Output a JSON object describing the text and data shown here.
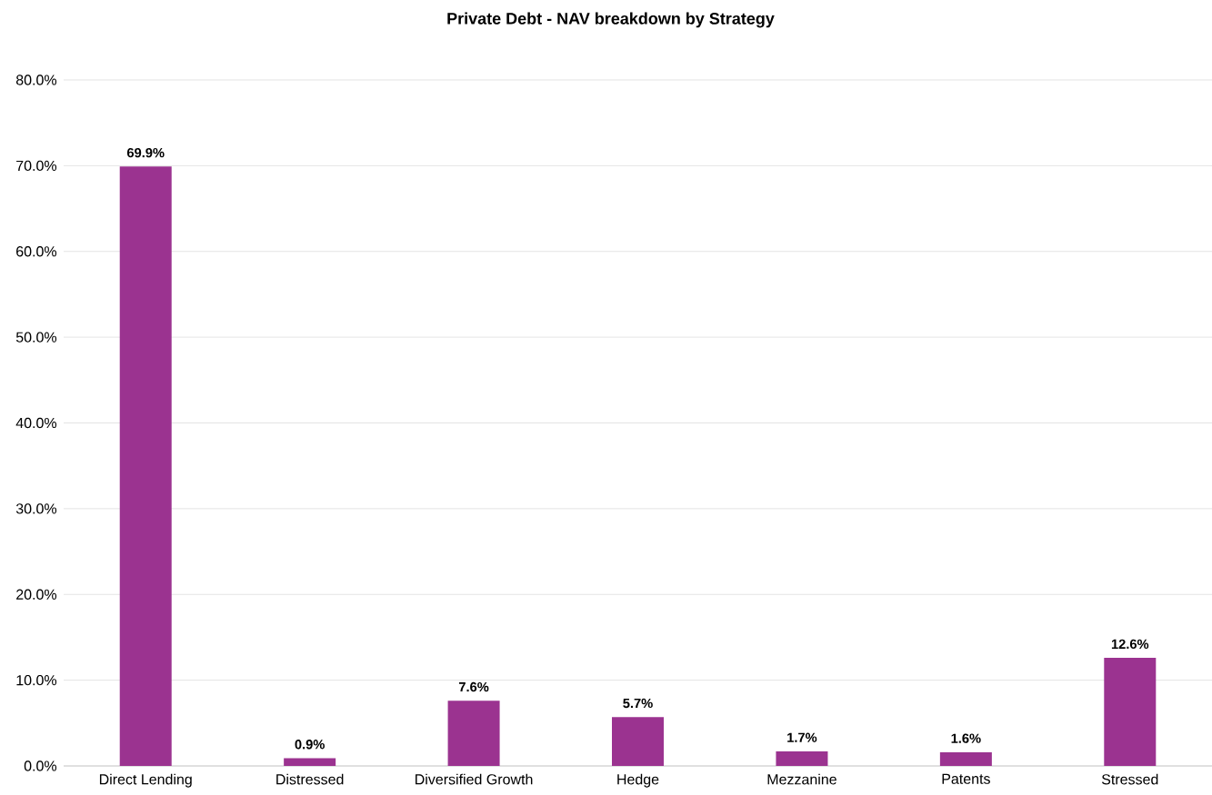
{
  "chart_data": {
    "type": "bar",
    "title": "Private Debt - NAV breakdown by Strategy",
    "categories": [
      "Direct Lending",
      "Distressed",
      "Diversified Growth",
      "Hedge",
      "Mezzanine",
      "Patents",
      "Stressed"
    ],
    "values": [
      69.9,
      0.9,
      7.6,
      5.7,
      1.7,
      1.6,
      12.6
    ],
    "value_labels": [
      "69.9%",
      "0.9%",
      "7.6%",
      "5.7%",
      "1.7%",
      "1.6%",
      "12.6%"
    ],
    "color": "#9b3390",
    "ylim": [
      0,
      80
    ],
    "yticks": [
      {
        "value": 0,
        "label": "0.0%"
      },
      {
        "value": 10,
        "label": "10.0%"
      },
      {
        "value": 20,
        "label": "20.0%"
      },
      {
        "value": 30,
        "label": "30.0%"
      },
      {
        "value": 40,
        "label": "40.0%"
      },
      {
        "value": 50,
        "label": "50.0%"
      },
      {
        "value": 60,
        "label": "60.0%"
      },
      {
        "value": 70,
        "label": "70.0%"
      },
      {
        "value": 80,
        "label": "80.0%"
      }
    ],
    "grid": "y"
  }
}
